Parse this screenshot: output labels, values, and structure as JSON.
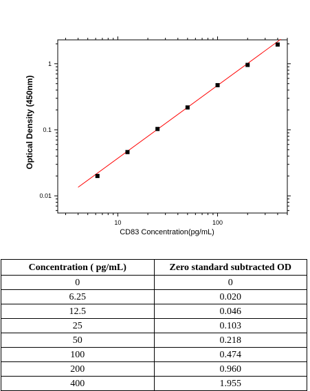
{
  "chart_data": {
    "type": "scatter",
    "title": "",
    "xlabel": "CD83  Concentration(pg/mL)",
    "ylabel": "Optical Density (450nm)",
    "xscale": "log",
    "yscale": "log",
    "xlim": [
      2.5,
      500
    ],
    "ylim": [
      0.0055,
      2.3
    ],
    "xticks": [
      {
        "value": 10,
        "label": "10"
      },
      {
        "value": 100,
        "label": "100"
      }
    ],
    "yticks": [
      {
        "value": 0.01,
        "label": "0.01"
      },
      {
        "value": 0.1,
        "label": "0.1"
      },
      {
        "value": 1,
        "label": "1"
      }
    ],
    "points": {
      "x": [
        6.25,
        12.5,
        25,
        50,
        100,
        200,
        400
      ],
      "y": [
        0.02,
        0.046,
        0.103,
        0.218,
        0.474,
        0.96,
        1.955
      ]
    },
    "fit_line": {
      "x": [
        4,
        430
      ],
      "y": [
        0.0135,
        2.35
      ],
      "color": "#ff0000"
    },
    "marker_color": "#000000"
  },
  "table": {
    "headers": [
      "Concentration ( pg/mL)",
      "Zero standard subtracted OD"
    ],
    "rows": [
      [
        "0",
        "0"
      ],
      [
        "6.25",
        "0.020"
      ],
      [
        "12.5",
        "0.046"
      ],
      [
        "25",
        "0.103"
      ],
      [
        "50",
        "0.218"
      ],
      [
        "100",
        "0.474"
      ],
      [
        "200",
        "0.960"
      ],
      [
        "400",
        "1.955"
      ]
    ]
  }
}
